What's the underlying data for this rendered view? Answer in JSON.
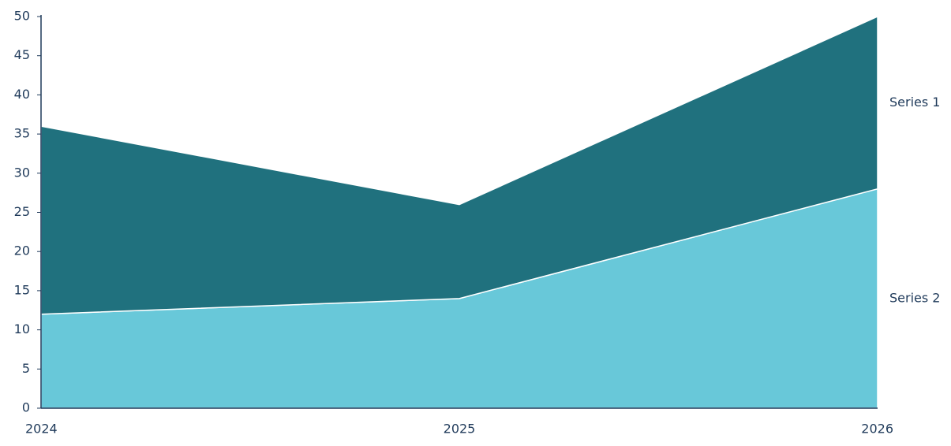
{
  "chart_data": {
    "type": "stacked-area",
    "categories": [
      "2024",
      "2025",
      "2026"
    ],
    "series": [
      {
        "name": "Series 1",
        "color": "#20717e",
        "values": [
          24,
          12,
          22
        ]
      },
      {
        "name": "Series 2",
        "color": "#68c8d9",
        "values": [
          12,
          14,
          28
        ]
      }
    ],
    "ylim": [
      0,
      50
    ],
    "yticks": [
      0,
      5,
      10,
      15,
      20,
      25,
      30,
      35,
      40,
      45,
      50
    ],
    "grid": false
  }
}
